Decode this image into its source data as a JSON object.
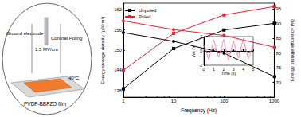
{
  "diagram": {
    "ground_label": "Ground electrode",
    "field_label": "1.5 MV/cm",
    "poling_label": "Coronal Poling",
    "temperature_label": "40°C",
    "film_label": "PVDF-BBFZO film"
  },
  "chart_data": [
    {
      "type": "line",
      "x_label": "Frequency (Hz)",
      "y_label": "Energy storage density (μJ/cm³)",
      "y2_label": "Energy storage efficiency (%)",
      "log": "x",
      "legend": "upper left",
      "grid": false,
      "x": [
        1,
        10,
        100,
        1000
      ],
      "xlim": [
        1,
        1000
      ],
      "xticks": [
        1,
        10,
        100,
        1000
      ],
      "ylim": [
        136,
        164
      ],
      "yticks": [
        138,
        144,
        150,
        156,
        162
      ],
      "y2lim": [
        65,
        97
      ],
      "y2ticks": [
        70,
        75,
        80,
        85,
        90,
        95
      ],
      "series": [
        {
          "name": "Unpoled",
          "color": "#000000",
          "marker": "square",
          "values": [
            138.5,
            150.5,
            156,
            158
          ]
        },
        {
          "name": "Poled",
          "color": "#e8212a",
          "marker": "square",
          "values": [
            144,
            155,
            160.5,
            163
          ]
        },
        {
          "name": "Unpoled",
          "color": "#000000",
          "marker": "circle",
          "axis": "y2",
          "values": [
            87,
            84,
            80,
            72
          ]
        },
        {
          "name": "Poled",
          "color": "#e8212a",
          "marker": "circle",
          "axis": "y2",
          "values": [
            91,
            88,
            86,
            82
          ]
        }
      ]
    },
    {
      "type": "line",
      "x_label": "Time (s)",
      "y_label": "Voc (V)",
      "x": [
        0,
        0.5,
        1,
        1.5,
        2,
        2.5,
        3,
        3.5,
        4,
        4.5,
        5
      ],
      "xlim": [
        0,
        5
      ],
      "xticks": [
        0,
        1,
        2,
        3,
        4,
        5
      ],
      "ylim": [
        -2,
        2
      ],
      "yticks": [
        -2,
        0,
        2
      ],
      "series": [
        {
          "color": "#555555",
          "values": [
            0.2,
            -0.3,
            0.4,
            -0.2,
            0.3,
            -0.4,
            0.2,
            -0.3,
            0.3,
            -0.2,
            0.1
          ]
        },
        {
          "color": "#ff6f9f",
          "values": [
            0.8,
            -1.2,
            1.5,
            -0.9,
            1.6,
            -1.3,
            1.4,
            -1,
            1.7,
            -1.1,
            0.9
          ]
        }
      ]
    }
  ]
}
